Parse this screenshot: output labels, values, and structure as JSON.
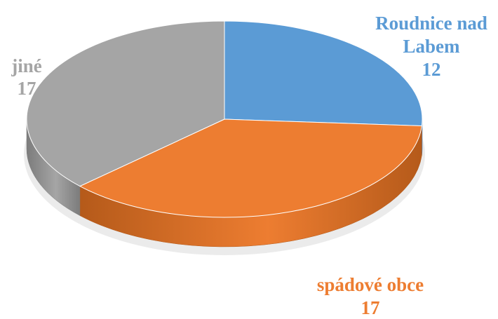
{
  "chart_data": {
    "type": "pie",
    "variant": "3d",
    "title": "",
    "slices": [
      {
        "name_lines": [
          "Roudnice nad",
          "Labem"
        ],
        "value": 12,
        "color": "#5B9BD5",
        "side_color": "#3E78AE"
      },
      {
        "name_lines": [
          "spádové obce"
        ],
        "value": 17,
        "color": "#ED7D31",
        "side_color": "#B55A1A"
      },
      {
        "name_lines": [
          "jiné"
        ],
        "value": 17,
        "color": "#A5A5A5",
        "side_color": "#7C7C7C"
      }
    ]
  }
}
